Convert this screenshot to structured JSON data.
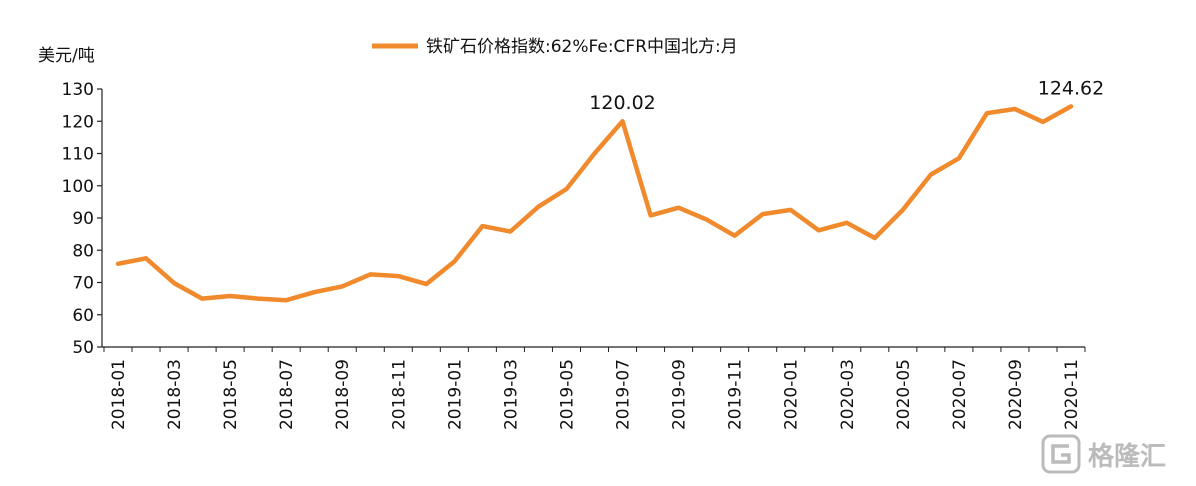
{
  "chart_data": {
    "type": "line",
    "title": "",
    "ylabel": "美元/吨",
    "ylim": [
      50,
      130
    ],
    "yticks": [
      50,
      60,
      70,
      80,
      90,
      100,
      110,
      120,
      130
    ],
    "legend": "top-center",
    "grid": false,
    "line_color": "#f08a2c",
    "x": [
      "2018-01",
      "2018-02",
      "2018-03",
      "2018-04",
      "2018-05",
      "2018-06",
      "2018-07",
      "2018-08",
      "2018-09",
      "2018-10",
      "2018-11",
      "2018-12",
      "2019-01",
      "2019-02",
      "2019-03",
      "2019-04",
      "2019-05",
      "2019-06",
      "2019-07",
      "2019-08",
      "2019-09",
      "2019-10",
      "2019-11",
      "2019-12",
      "2020-01",
      "2020-02",
      "2020-03",
      "2020-04",
      "2020-05",
      "2020-06",
      "2020-07",
      "2020-08",
      "2020-09",
      "2020-10",
      "2020-11"
    ],
    "xtick_labels": [
      "2018-01",
      "2018-03",
      "2018-05",
      "2018-07",
      "2018-09",
      "2018-11",
      "2019-01",
      "2019-03",
      "2019-05",
      "2019-07",
      "2019-09",
      "2019-11",
      "2020-01",
      "2020-03",
      "2020-05",
      "2020-07",
      "2020-09",
      "2020-11"
    ],
    "series": [
      {
        "name": "铁矿石价格指数:62%Fe:CFR中国北方:月",
        "values": [
          75.8,
          77.5,
          69.8,
          65.0,
          65.8,
          65.0,
          64.5,
          67.0,
          68.8,
          72.5,
          72.0,
          69.5,
          76.5,
          87.5,
          85.8,
          93.5,
          99.0,
          110.0,
          120.02,
          90.8,
          93.2,
          89.5,
          84.5,
          91.2,
          92.5,
          86.2,
          88.5,
          83.8,
          92.5,
          103.5,
          108.5,
          122.5,
          123.8,
          119.8,
          124.62
        ]
      }
    ],
    "annotations": [
      {
        "text": "120.02",
        "x": "2019-07",
        "y": 120.02
      },
      {
        "text": "124.62",
        "x": "2020-11",
        "y": 124.62
      }
    ]
  },
  "watermark": {
    "text": "格隆汇",
    "icon": "g-logo-icon"
  }
}
